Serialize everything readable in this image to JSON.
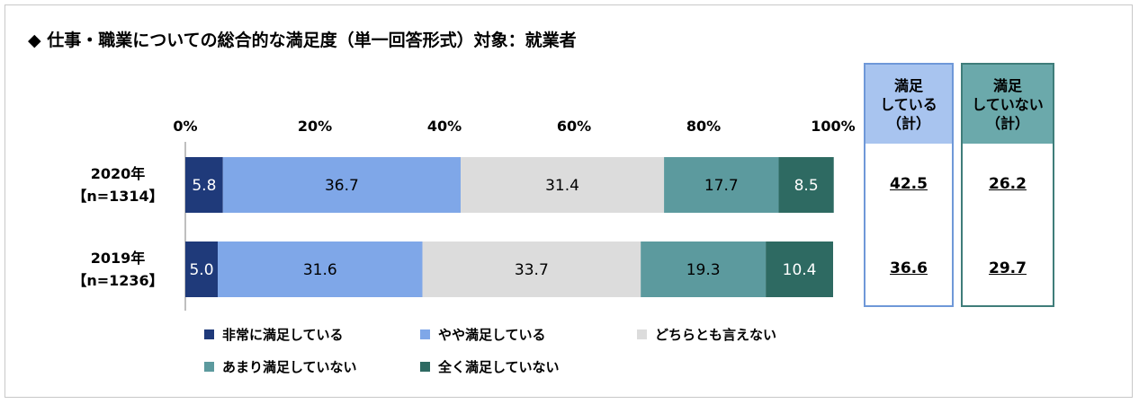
{
  "title": "◆ 仕事・職業についての総合的な満足度（単一回答形式）対象：就業者",
  "colors": {
    "very_satisfied": "#1f3a7a",
    "somewhat_satisfied": "#7fa7e8",
    "neutral": "#dcdcdc",
    "not_very_satisfied": "#5c9a9e",
    "not_at_all_satisfied": "#2e6a62",
    "box_blue": "#6f98d8",
    "box_blue_fill": "#a8c4ef",
    "box_teal": "#3f7d7a",
    "box_teal_fill": "#6ba9ab"
  },
  "chart_data": {
    "type": "bar",
    "orientation": "horizontal",
    "stacked": true,
    "percent": true,
    "xlim": [
      0,
      100
    ],
    "x_ticks": [
      "0%",
      "20%",
      "40%",
      "60%",
      "80%",
      "100%"
    ],
    "categories": [
      {
        "line1": "2020年",
        "line2": "【n=1314】"
      },
      {
        "line1": "2019年",
        "line2": "【n=1236】"
      }
    ],
    "series": [
      {
        "name": "非常に満足している",
        "color_key": "very_satisfied",
        "values": [
          5.8,
          5.0
        ]
      },
      {
        "name": "やや満足している",
        "color_key": "somewhat_satisfied",
        "values": [
          36.7,
          31.6
        ]
      },
      {
        "name": "どちらとも言えない",
        "color_key": "neutral",
        "values": [
          31.4,
          33.7
        ]
      },
      {
        "name": "あまり満足していない",
        "color_key": "not_very_satisfied",
        "values": [
          17.7,
          19.3
        ]
      },
      {
        "name": "全く満足していない",
        "color_key": "not_at_all_satisfied",
        "values": [
          8.5,
          10.4
        ]
      }
    ],
    "label_colors": [
      "#ffffff",
      "#000000",
      "#000000",
      "#000000",
      "#ffffff"
    ],
    "legend_position": "bottom"
  },
  "summary": {
    "satisfied": {
      "header": "満足\nしている\n（計）",
      "values": [
        "42.5",
        "36.6"
      ]
    },
    "not_satisfied": {
      "header": "満足\nしていない\n（計）",
      "values": [
        "26.2",
        "29.7"
      ]
    }
  }
}
